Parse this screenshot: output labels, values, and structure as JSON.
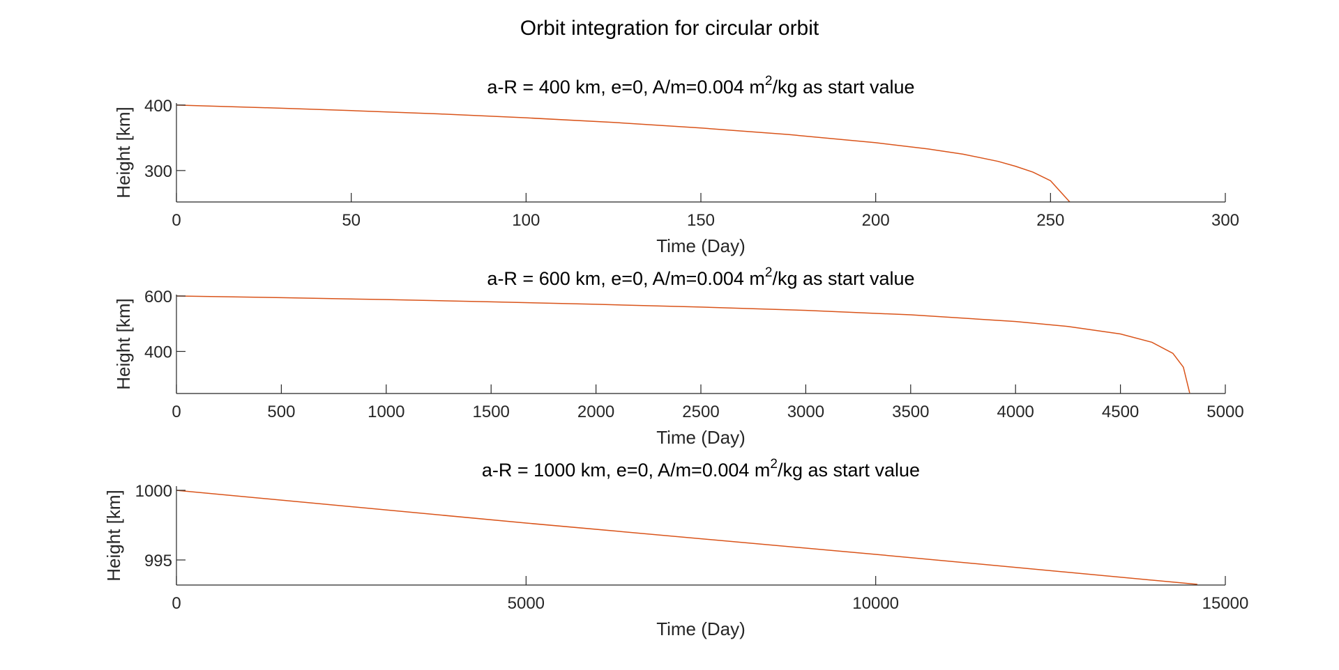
{
  "figure": {
    "title": "Orbit integration for circular orbit"
  },
  "colors": {
    "line": "#D95319",
    "axis": "#262626",
    "text": "#262626"
  },
  "chart_data": [
    {
      "type": "line",
      "title": "a-R = 400 km, e=0, A/m=0.004 m²/kg as start value",
      "title_parts": {
        "pre": "a-R = 400 km, e=0, A/m=0.004 m",
        "sup": "2",
        "post": "/kg as start value"
      },
      "xlabel": "Time (Day)",
      "ylabel": "Height [km]",
      "xlim": [
        0,
        300
      ],
      "ylim": [
        252,
        403
      ],
      "xticks": [
        0,
        50,
        100,
        150,
        200,
        250,
        300
      ],
      "yticks": [
        300,
        400
      ],
      "grid": false,
      "series": [
        {
          "x": [
            0,
            25,
            50,
            75,
            100,
            125,
            150,
            175,
            200,
            215,
            225,
            235,
            240,
            245,
            250,
            255.5
          ],
          "y": [
            400,
            396,
            391.5,
            386.5,
            380.5,
            373.5,
            365,
            355,
            342.5,
            333,
            325,
            314,
            306.5,
            297.5,
            284.5,
            252
          ]
        }
      ]
    },
    {
      "type": "line",
      "title": "a-R = 600 km, e=0, A/m=0.004 m²/kg as start value",
      "title_parts": {
        "pre": "a-R = 600 km, e=0, A/m=0.004 m",
        "sup": "2",
        "post": "/kg as start value"
      },
      "xlabel": "Time (Day)",
      "ylabel": "Height [km]",
      "xlim": [
        0,
        5000
      ],
      "ylim": [
        248,
        605
      ],
      "xticks": [
        0,
        500,
        1000,
        1500,
        2000,
        2500,
        3000,
        3500,
        4000,
        4500,
        5000
      ],
      "yticks": [
        400,
        600
      ],
      "grid": false,
      "series": [
        {
          "x": [
            0,
            500,
            1000,
            1500,
            2000,
            2500,
            3000,
            3500,
            4000,
            4250,
            4500,
            4650,
            4750,
            4800,
            4830
          ],
          "y": [
            600,
            594,
            587,
            579,
            570,
            560,
            548,
            532,
            508,
            490,
            463,
            433,
            393,
            343,
            250
          ]
        }
      ]
    },
    {
      "type": "line",
      "title": "a-R = 1000 km, e=0, A/m=0.004 m²/kg as start value",
      "title_parts": {
        "pre": "a-R = 1000 km, e=0, A/m=0.004 m",
        "sup": "2",
        "post": "/kg as start value"
      },
      "xlabel": "Time (Day)",
      "ylabel": "Height [km]",
      "xlim": [
        0,
        15000
      ],
      "ylim": [
        993.2,
        1000.3
      ],
      "xticks": [
        0,
        5000,
        10000,
        15000
      ],
      "yticks": [
        995,
        1000
      ],
      "grid": false,
      "series": [
        {
          "x": [
            0,
            5000,
            10000,
            14600
          ],
          "y": [
            1000,
            997.65,
            995.4,
            993.25
          ]
        }
      ]
    }
  ]
}
